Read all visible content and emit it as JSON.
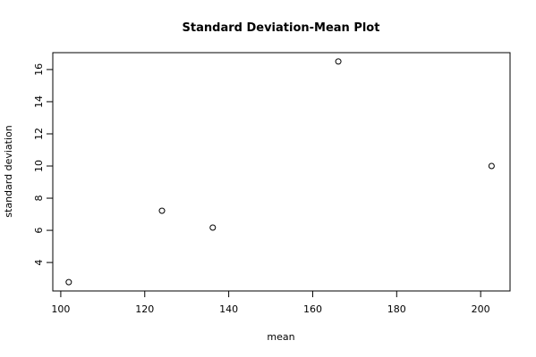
{
  "chart_data": {
    "type": "scatter",
    "title": "Standard Deviation-Mean Plot",
    "xlabel": "mean",
    "ylabel": "standard deviation",
    "x": [
      101.9,
      124.1,
      136.2,
      166.1,
      202.6
    ],
    "values": [
      2.78,
      7.22,
      6.17,
      16.5,
      10.0
    ],
    "color": "#000000",
    "xlim": [
      98.1,
      207.0
    ],
    "xticks": [
      100,
      120,
      140,
      160,
      180,
      200
    ],
    "ylim": [
      2.23,
      17.05
    ],
    "yticks": [
      4,
      6,
      8,
      10,
      12,
      14,
      16
    ],
    "grid": false
  }
}
